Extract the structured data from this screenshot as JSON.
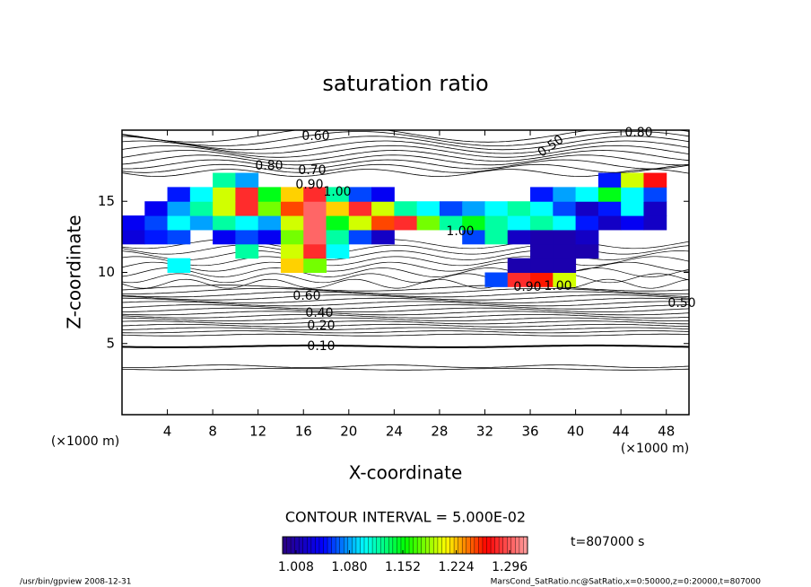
{
  "chart_data": {
    "type": "contour",
    "title": "saturation ratio",
    "xlabel": "X-coordinate",
    "ylabel": "Z-coordinate",
    "x_unit": "(×1000 m)",
    "y_unit": "(×1000 m)",
    "xlim": [
      0,
      50
    ],
    "ylim": [
      0,
      20
    ],
    "xticks": [
      4,
      8,
      12,
      16,
      20,
      24,
      28,
      32,
      36,
      40,
      44,
      48
    ],
    "yticks": [
      5,
      10,
      15
    ],
    "contour_interval": "CONTOUR INTERVAL = 5.000E-02",
    "time_label": "t=807000 s",
    "footer_left": "/usr/bin/gpview  2008-12-31",
    "footer_right": "MarsCond_SatRatio.nc@SatRatio,x=0:50000,z=0:20000,t=807000",
    "contour_labels": [
      {
        "value": 0.6,
        "label": "0.60"
      },
      {
        "value": 0.5,
        "label": "0.50"
      },
      {
        "value": 0.8,
        "label": "0.80"
      },
      {
        "value": 0.8,
        "label": "0.80"
      },
      {
        "value": 0.7,
        "label": "0.70"
      },
      {
        "value": 0.9,
        "label": "0.90"
      },
      {
        "value": 1,
        "label": "1.00"
      },
      {
        "value": 1,
        "label": "1.00"
      },
      {
        "value": 1,
        "label": "1.00"
      },
      {
        "value": 0.9,
        "label": "0.90"
      },
      {
        "value": 0.6,
        "label": "0.60"
      },
      {
        "value": 0.4,
        "label": "0.40"
      },
      {
        "value": 0.2,
        "label": "0.20"
      },
      {
        "value": 0.1,
        "label": "0.10"
      },
      {
        "value": 0.5,
        "label": "0.50"
      }
    ],
    "shading": {
      "x": [
        1,
        3,
        5,
        7,
        9,
        11,
        13,
        15,
        17,
        19,
        21,
        23,
        25,
        27,
        29,
        31,
        33,
        35,
        37,
        39,
        41,
        43,
        45,
        47,
        49
      ],
      "z": [
        9.5,
        10.5,
        11.5,
        12.5,
        13.5,
        14.5,
        15.5,
        16.5
      ],
      "values": [
        [
          null,
          null,
          null,
          null,
          null,
          null,
          null,
          null,
          null,
          null,
          null,
          null,
          null,
          null,
          null,
          null,
          1.06,
          1.28,
          1.26,
          1.2,
          null,
          null,
          null,
          null,
          null
        ],
        [
          null,
          null,
          1.1,
          null,
          null,
          null,
          null,
          1.22,
          1.18,
          null,
          null,
          null,
          null,
          null,
          null,
          null,
          null,
          1.01,
          1.01,
          1.01,
          null,
          null,
          null,
          null,
          null
        ],
        [
          null,
          null,
          null,
          null,
          null,
          1.12,
          null,
          1.2,
          1.28,
          1.1,
          null,
          null,
          null,
          null,
          null,
          null,
          null,
          null,
          1.01,
          1.01,
          1.01,
          null,
          null,
          null,
          null
        ],
        [
          1.03,
          1.05,
          1.06,
          null,
          1.04,
          1.06,
          1.04,
          1.18,
          1.3,
          1.12,
          1.06,
          1.02,
          null,
          null,
          null,
          1.06,
          1.12,
          1.02,
          1.01,
          1.01,
          1.02,
          null,
          null,
          null,
          null
        ],
        [
          1.04,
          1.06,
          1.1,
          1.08,
          1.12,
          1.1,
          1.08,
          1.2,
          1.3,
          1.15,
          1.2,
          1.25,
          1.28,
          1.18,
          1.12,
          1.15,
          1.12,
          1.1,
          1.12,
          1.1,
          1.05,
          1.02,
          1.04,
          1.02,
          null
        ],
        [
          null,
          1.04,
          1.08,
          1.12,
          1.2,
          1.28,
          1.18,
          1.25,
          1.3,
          1.22,
          1.28,
          1.2,
          1.12,
          1.1,
          1.06,
          1.08,
          1.1,
          1.12,
          1.1,
          1.06,
          1.02,
          1.05,
          1.1,
          1.02,
          null
        ],
        [
          null,
          null,
          1.05,
          1.1,
          1.2,
          1.28,
          1.15,
          1.22,
          1.28,
          1.12,
          1.06,
          1.04,
          null,
          null,
          null,
          null,
          null,
          null,
          1.05,
          1.08,
          1.1,
          1.15,
          1.1,
          1.06,
          null
        ],
        [
          null,
          null,
          null,
          null,
          1.12,
          1.08,
          null,
          null,
          null,
          null,
          null,
          null,
          null,
          null,
          null,
          null,
          null,
          null,
          null,
          null,
          null,
          1.05,
          1.2,
          1.27,
          null
        ]
      ],
      "colors": [
        "#2a0080",
        "#0000ff",
        "#00ffff",
        "#00ff00",
        "#ffff00",
        "#ff0000",
        "#ffa0a0"
      ],
      "clim": [
        0.99,
        1.32
      ],
      "cticks": [
        1.008,
        {
          "value": 1.08,
          "label": "1.080"
        },
        1.152,
        1.224,
        1.296
      ]
    }
  }
}
